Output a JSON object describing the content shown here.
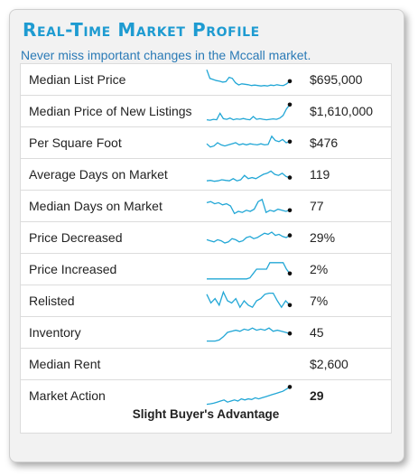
{
  "header": {
    "title": "Real-Time Market Profile",
    "subtitle": "Never miss important changes in the Mccall market."
  },
  "colors": {
    "title": "#1e9bd1",
    "sparkline": "#22a7d6",
    "endpoint": "#111111"
  },
  "rows": [
    {
      "label": "Median List Price",
      "value": "$695,000",
      "spark": [
        0.95,
        0.55,
        0.5,
        0.45,
        0.42,
        0.38,
        0.4,
        0.6,
        0.55,
        0.35,
        0.25,
        0.3,
        0.28,
        0.26,
        0.22,
        0.24,
        0.22,
        0.2,
        0.22,
        0.2,
        0.24,
        0.22,
        0.26,
        0.23,
        0.22,
        0.3,
        0.42
      ]
    },
    {
      "label": "Median Price of New Listings",
      "value": "$1,610,000",
      "spark": [
        0.1,
        0.08,
        0.12,
        0.1,
        0.4,
        0.15,
        0.12,
        0.18,
        0.1,
        0.14,
        0.12,
        0.16,
        0.12,
        0.1,
        0.25,
        0.12,
        0.15,
        0.12,
        0.1,
        0.12,
        0.14,
        0.12,
        0.18,
        0.3,
        0.6,
        0.8
      ]
    },
    {
      "label": "Per Square Foot",
      "value": "$476",
      "spark": [
        0.45,
        0.3,
        0.35,
        0.5,
        0.4,
        0.35,
        0.4,
        0.45,
        0.5,
        0.4,
        0.45,
        0.4,
        0.45,
        0.42,
        0.4,
        0.45,
        0.4,
        0.42,
        0.8,
        0.6,
        0.55,
        0.65,
        0.5,
        0.55
      ]
    },
    {
      "label": "Average Days on Market",
      "value": "119",
      "spark": [
        0.2,
        0.22,
        0.18,
        0.2,
        0.25,
        0.22,
        0.2,
        0.3,
        0.2,
        0.25,
        0.45,
        0.3,
        0.35,
        0.3,
        0.4,
        0.5,
        0.55,
        0.65,
        0.5,
        0.45,
        0.55,
        0.4,
        0.35
      ]
    },
    {
      "label": "Median Days on Market",
      "value": "77",
      "spark": [
        0.65,
        0.7,
        0.6,
        0.65,
        0.55,
        0.6,
        0.5,
        0.15,
        0.25,
        0.2,
        0.3,
        0.25,
        0.35,
        0.7,
        0.8,
        0.2,
        0.3,
        0.25,
        0.35,
        0.3,
        0.25,
        0.3
      ]
    },
    {
      "label": "Price Decreased",
      "value": "29%",
      "spark": [
        0.4,
        0.35,
        0.3,
        0.4,
        0.35,
        0.25,
        0.3,
        0.45,
        0.4,
        0.3,
        0.35,
        0.5,
        0.55,
        0.45,
        0.5,
        0.6,
        0.7,
        0.65,
        0.75,
        0.6,
        0.65,
        0.55,
        0.5,
        0.6
      ]
    },
    {
      "label": "Price Increased",
      "value": "2%",
      "spark": [
        0.05,
        0.05,
        0.05,
        0.05,
        0.05,
        0.05,
        0.05,
        0.05,
        0.05,
        0.05,
        0.05,
        0.05,
        0.05,
        0.1,
        0.3,
        0.5,
        0.5,
        0.5,
        0.5,
        0.8,
        0.8,
        0.8,
        0.8,
        0.8,
        0.5,
        0.3
      ]
    },
    {
      "label": "Relisted",
      "value": "7%",
      "spark": [
        0.8,
        0.4,
        0.6,
        0.3,
        0.9,
        0.5,
        0.4,
        0.6,
        0.2,
        0.5,
        0.3,
        0.2,
        0.5,
        0.6,
        0.8,
        0.85,
        0.85,
        0.5,
        0.2,
        0.5,
        0.3
      ]
    },
    {
      "label": "Inventory",
      "value": "45",
      "spark": [
        0.1,
        0.1,
        0.1,
        0.15,
        0.3,
        0.5,
        0.55,
        0.6,
        0.55,
        0.65,
        0.6,
        0.7,
        0.6,
        0.65,
        0.6,
        0.7,
        0.55,
        0.6,
        0.55,
        0.5,
        0.45
      ]
    },
    {
      "label": "Median Rent",
      "value": "$2,600",
      "spark": []
    },
    {
      "label": "Market Action",
      "value": "29",
      "spark": [
        0.1,
        0.12,
        0.15,
        0.2,
        0.25,
        0.3,
        0.2,
        0.25,
        0.3,
        0.25,
        0.35,
        0.3,
        0.35,
        0.32,
        0.4,
        0.35,
        0.4,
        0.45,
        0.5,
        0.55,
        0.6,
        0.65,
        0.7,
        0.8,
        0.9
      ],
      "footer": "Slight Buyer's Advantage"
    }
  ]
}
